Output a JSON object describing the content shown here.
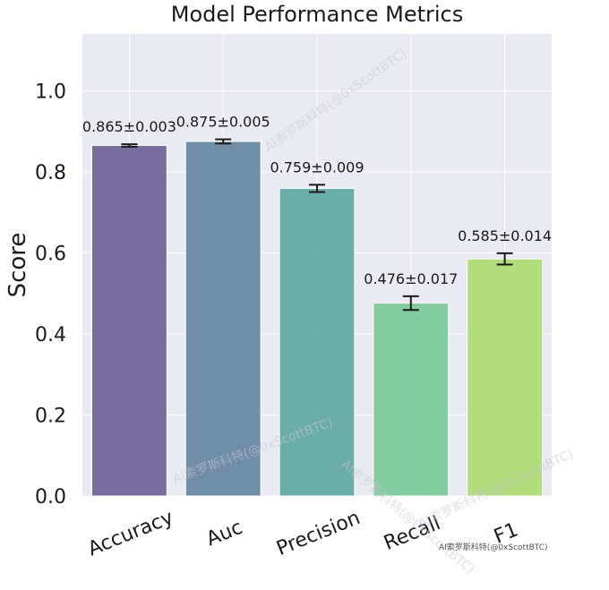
{
  "chart_data": {
    "type": "bar",
    "title": "Model Performance Metrics",
    "xlabel": "",
    "ylabel": "Score",
    "categories": [
      "Accuracy",
      "Auc",
      "Precision",
      "Recall",
      "F1"
    ],
    "values": [
      0.865,
      0.875,
      0.759,
      0.476,
      0.585
    ],
    "errors": [
      0.003,
      0.005,
      0.009,
      0.017,
      0.014
    ],
    "value_labels": [
      "0.865±0.003",
      "0.875±0.005",
      "0.759±0.009",
      "0.476±0.017",
      "0.585±0.014"
    ],
    "colors": [
      "#6c5f98",
      "#64849e",
      "#60a7a4",
      "#78c997",
      "#addb72"
    ],
    "ylim": [
      0,
      1.14
    ],
    "yticks": [
      0.0,
      0.2,
      0.4,
      0.6,
      0.8,
      1.0
    ],
    "ytick_labels": [
      "0.0",
      "0.2",
      "0.4",
      "0.6",
      "0.8",
      "1.0"
    ],
    "grid": true,
    "background_color": "#eaeaf2"
  },
  "watermark": {
    "text": "AI索罗斯科特(@0xScottBTC)"
  }
}
